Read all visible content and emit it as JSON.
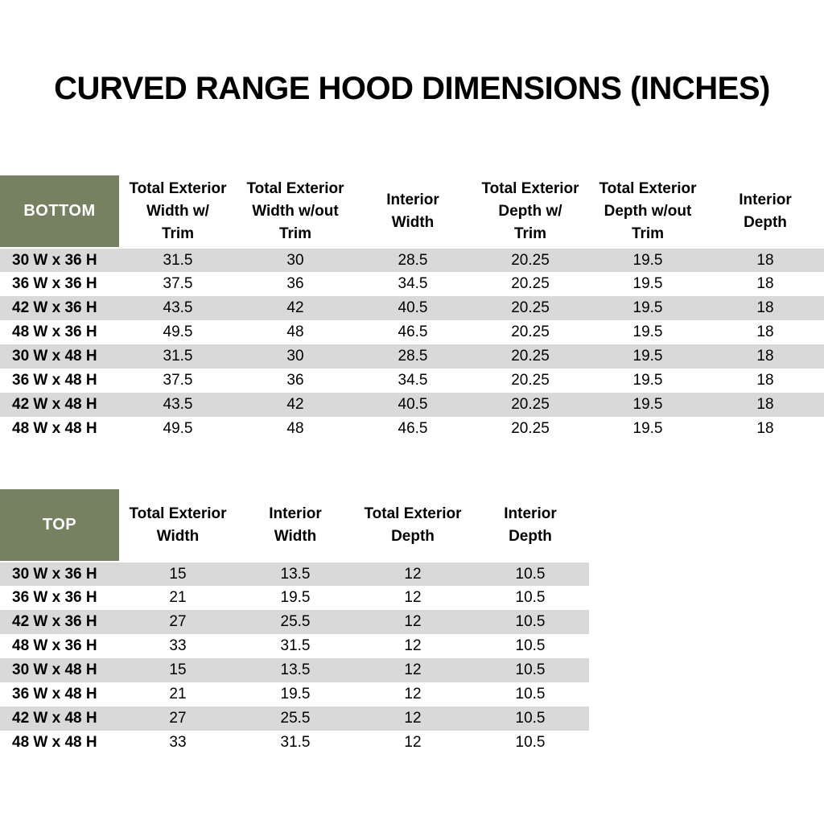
{
  "page": {
    "title": "CURVED RANGE HOOD DIMENSIONS (INCHES)"
  },
  "colors": {
    "header_green": "#768162",
    "row_stripe_gray": "#d9d9d9",
    "text_black": "#000000",
    "header_text_white": "#ffffff"
  },
  "bottom_table": {
    "corner_label": "BOTTOM",
    "columns": [
      "Total Exterior\nWidth w/\nTrim",
      "Total Exterior\nWidth w/out\nTrim",
      "Interior\nWidth",
      "Total Exterior\nDepth w/\nTrim",
      "Total Exterior\nDepth w/out\nTrim",
      "Interior\nDepth"
    ],
    "rows": [
      {
        "label": "30 W x 36 H",
        "values": [
          "31.5",
          "30",
          "28.5",
          "20.25",
          "19.5",
          "18"
        ]
      },
      {
        "label": "36 W x 36 H",
        "values": [
          "37.5",
          "36",
          "34.5",
          "20.25",
          "19.5",
          "18"
        ]
      },
      {
        "label": "42 W x 36 H",
        "values": [
          "43.5",
          "42",
          "40.5",
          "20.25",
          "19.5",
          "18"
        ]
      },
      {
        "label": "48 W x 36 H",
        "values": [
          "49.5",
          "48",
          "46.5",
          "20.25",
          "19.5",
          "18"
        ]
      },
      {
        "label": "30 W x 48 H",
        "values": [
          "31.5",
          "30",
          "28.5",
          "20.25",
          "19.5",
          "18"
        ]
      },
      {
        "label": "36 W x 48 H",
        "values": [
          "37.5",
          "36",
          "34.5",
          "20.25",
          "19.5",
          "18"
        ]
      },
      {
        "label": "42 W x 48 H",
        "values": [
          "43.5",
          "42",
          "40.5",
          "20.25",
          "19.5",
          "18"
        ]
      },
      {
        "label": "48 W x 48 H",
        "values": [
          "49.5",
          "48",
          "46.5",
          "20.25",
          "19.5",
          "18"
        ]
      }
    ]
  },
  "top_table": {
    "corner_label": "TOP",
    "columns": [
      "Total Exterior\nWidth",
      "Interior\nWidth",
      "Total Exterior\nDepth",
      "Interior\nDepth"
    ],
    "rows": [
      {
        "label": "30 W x 36 H",
        "values": [
          "15",
          "13.5",
          "12",
          "10.5"
        ]
      },
      {
        "label": "36 W x 36 H",
        "values": [
          "21",
          "19.5",
          "12",
          "10.5"
        ]
      },
      {
        "label": "42 W x 36 H",
        "values": [
          "27",
          "25.5",
          "12",
          "10.5"
        ]
      },
      {
        "label": "48 W x 36 H",
        "values": [
          "33",
          "31.5",
          "12",
          "10.5"
        ]
      },
      {
        "label": "30 W x 48 H",
        "values": [
          "15",
          "13.5",
          "12",
          "10.5"
        ]
      },
      {
        "label": "36 W x 48 H",
        "values": [
          "21",
          "19.5",
          "12",
          "10.5"
        ]
      },
      {
        "label": "42 W x 48 H",
        "values": [
          "27",
          "25.5",
          "12",
          "10.5"
        ]
      },
      {
        "label": "48 W x 48 H",
        "values": [
          "33",
          "31.5",
          "12",
          "10.5"
        ]
      }
    ]
  }
}
